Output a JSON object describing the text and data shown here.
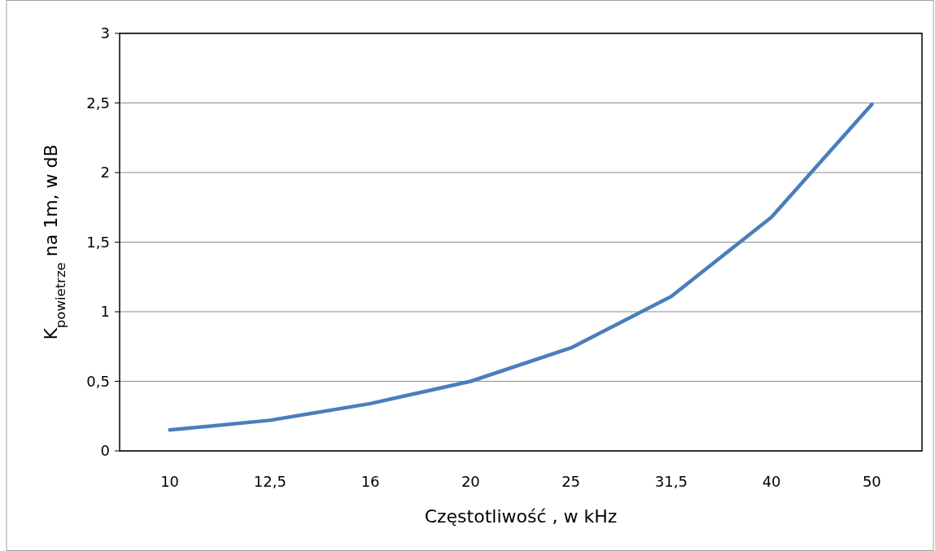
{
  "chart_data": {
    "type": "line",
    "xlabel": "Częstotliwość , w kHz",
    "ylabel": "K$_{powietrze}$ na 1m, w dB",
    "categories": [
      "10",
      "12,5",
      "16",
      "20",
      "25",
      "31,5",
      "40",
      "50"
    ],
    "series": [
      {
        "color": "#4a7ebb",
        "values": [
          0.15,
          0.22,
          0.34,
          0.5,
          0.74,
          1.11,
          1.68,
          2.49
        ]
      }
    ],
    "ylim": [
      0,
      3
    ],
    "yticks": [
      {
        "value": 0,
        "label": "0"
      },
      {
        "value": 0.5,
        "label": "0,5"
      },
      {
        "value": 1,
        "label": "1"
      },
      {
        "value": 1.5,
        "label": "1,5"
      },
      {
        "value": 2,
        "label": "2"
      },
      {
        "value": 2.5,
        "label": "2,5"
      },
      {
        "value": 3,
        "label": "3"
      }
    ],
    "grid": "y",
    "marker": "none",
    "line_style": "solid"
  }
}
